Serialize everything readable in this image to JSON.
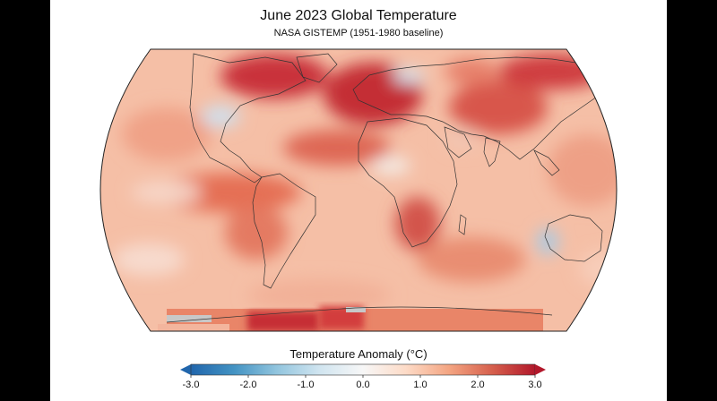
{
  "title": "June 2023 Global Temperature",
  "subtitle": "NASA GISTEMP (1951-1980 baseline)",
  "map_type": "world anomaly map",
  "colorbar": {
    "title": "Temperature Anomaly (°C)",
    "min": -3.0,
    "max": 3.0,
    "ticks": [
      "-3.0",
      "-2.0",
      "-1.0",
      "0.0",
      "1.0",
      "2.0",
      "3.0"
    ],
    "tick_values": [
      -3,
      -2,
      -1,
      0,
      1,
      2,
      3
    ],
    "colors": [
      "#2166ac",
      "#4393c3",
      "#92c5de",
      "#d1e5f0",
      "#f7f7f7",
      "#fddbc7",
      "#f4a582",
      "#d6604d",
      "#b2182b"
    ],
    "extend_low_color": "#2166ac",
    "extend_high_color": "#b2182b"
  },
  "colors": {
    "background": "#000000",
    "ocean_base": "#f6c3ad",
    "missing_data": "#c8c8c8"
  }
}
